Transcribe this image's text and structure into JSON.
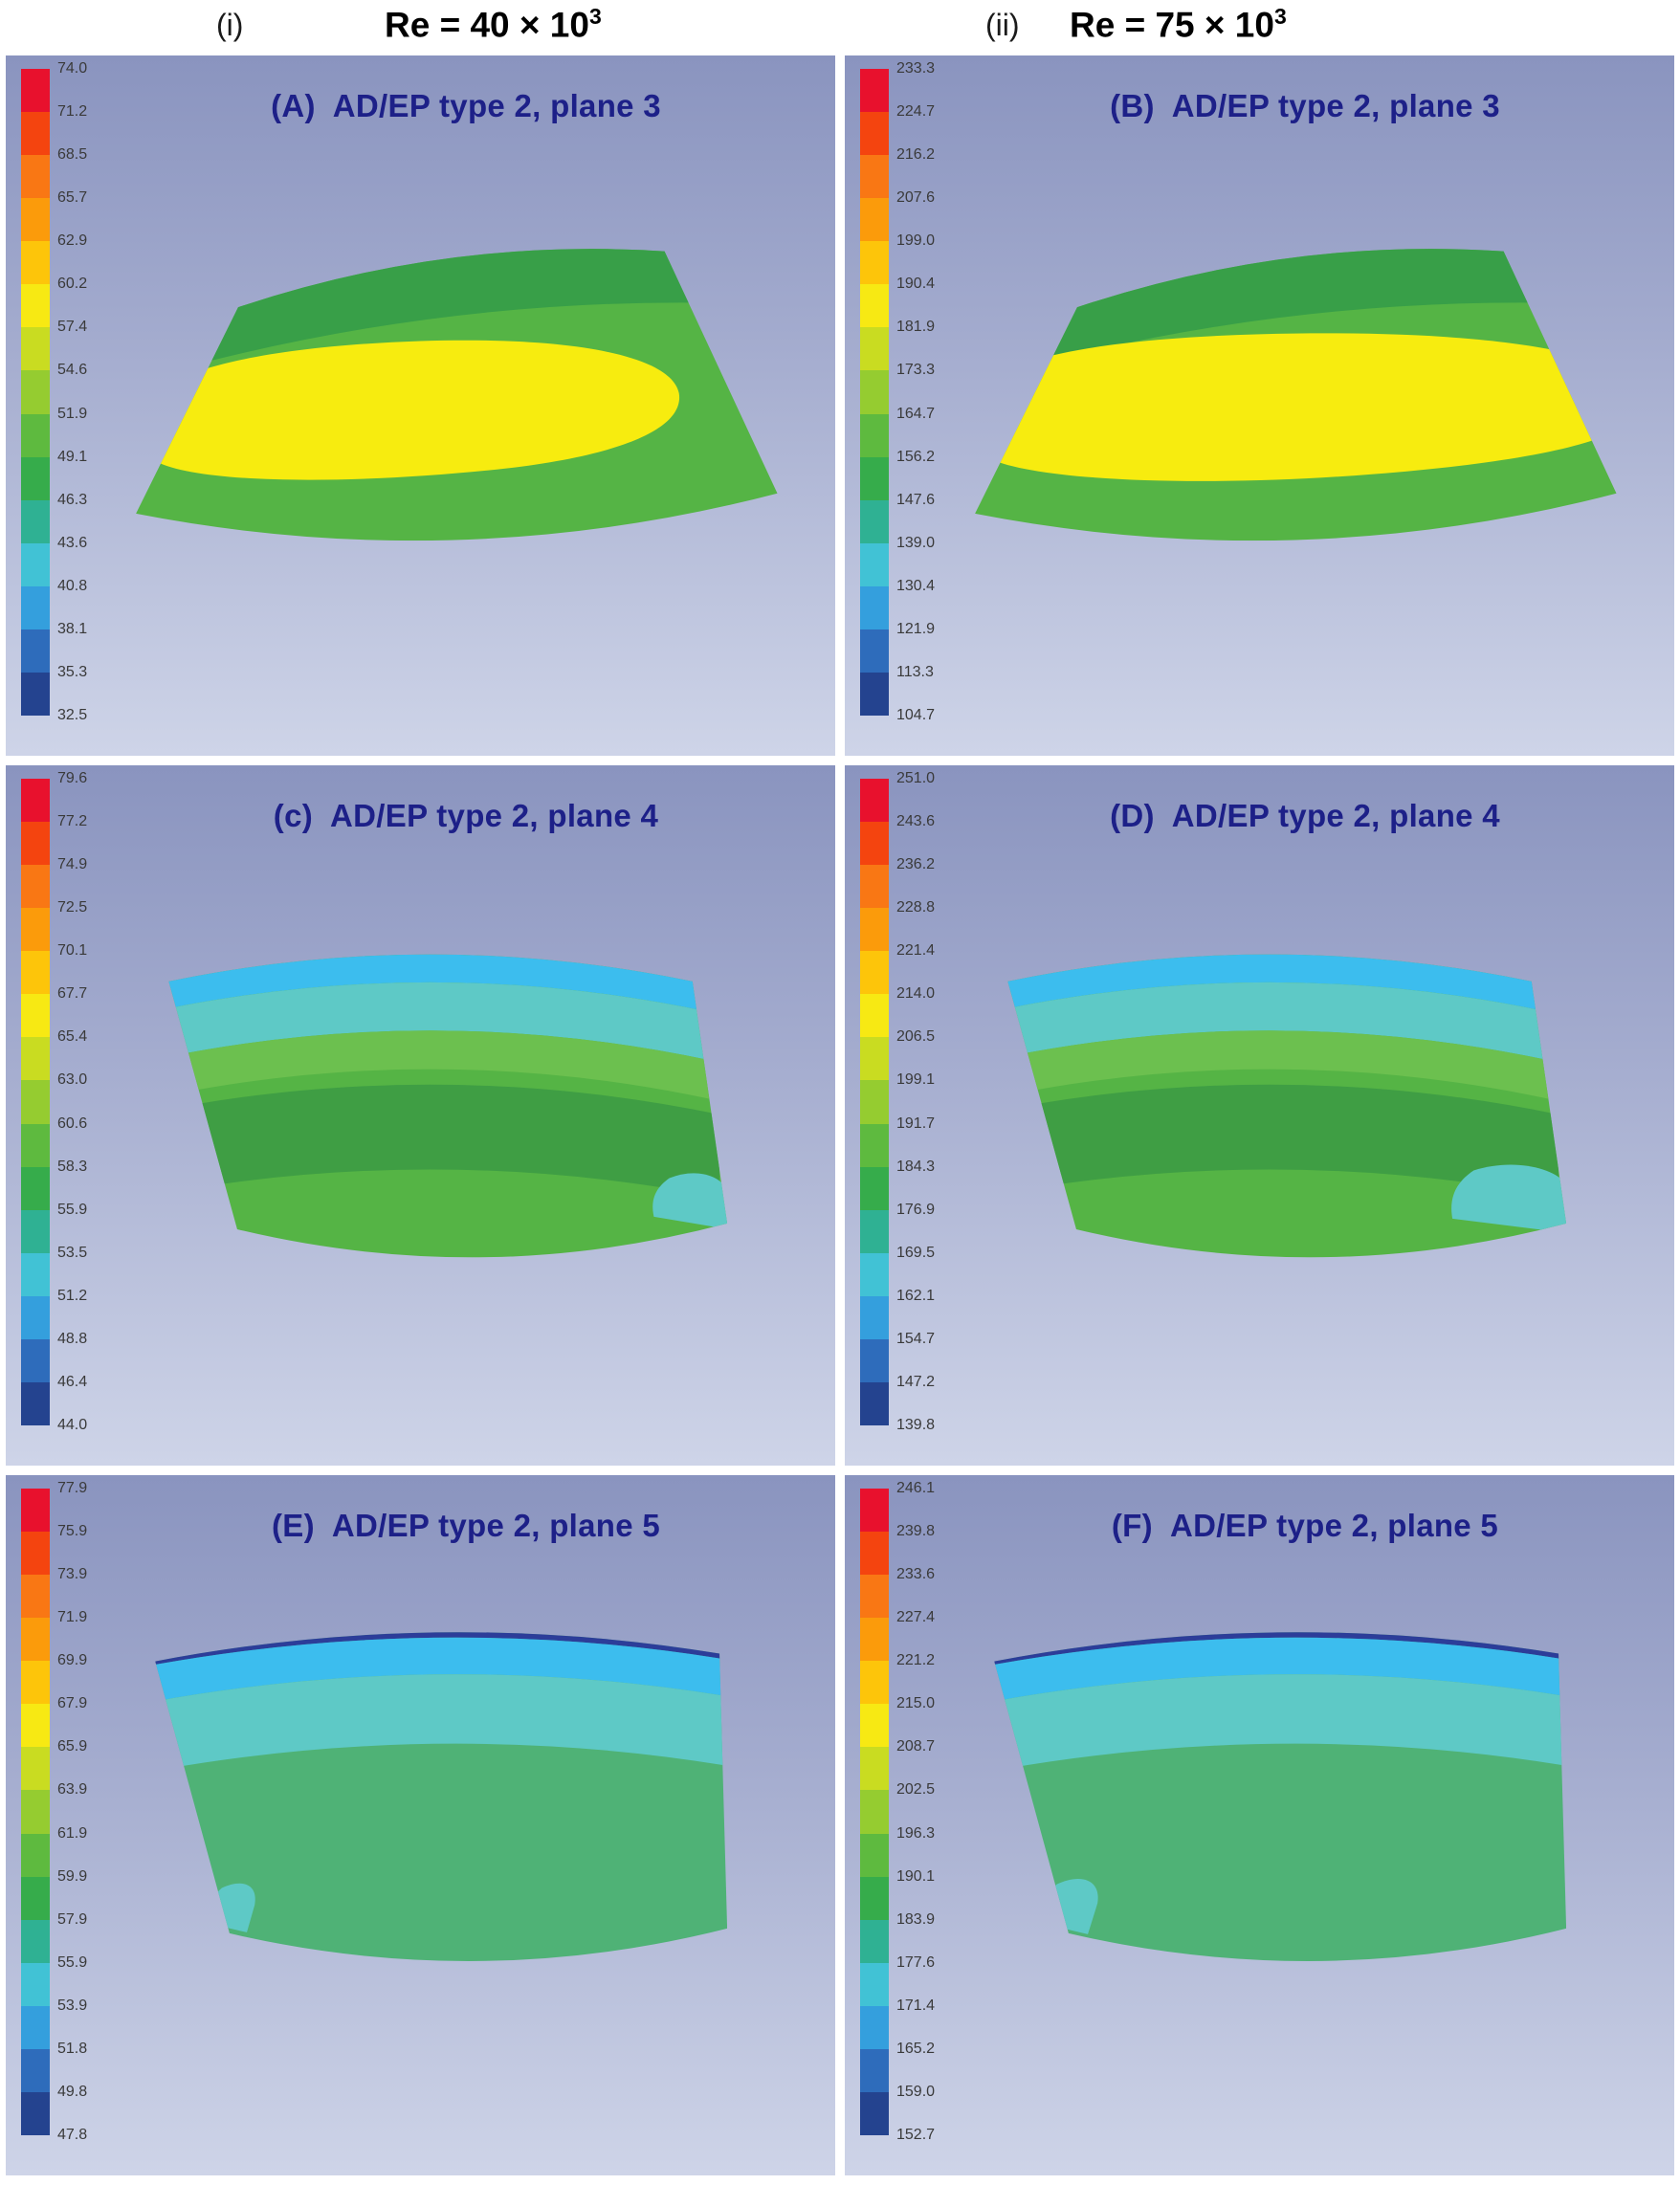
{
  "header": {
    "left": {
      "index": "(i)",
      "re": "Re = 40 × 10",
      "sup": "3"
    },
    "right": {
      "index": "(ii)",
      "re": "Re = 75 × 10",
      "sup": "3"
    }
  },
  "palette": {
    "green": "#55b445",
    "green_dark": "#389f48",
    "green_dark2": "#3f9e44",
    "green_light": "#6cc04f",
    "seagreen": "#4fb276",
    "yellow": "#f7ec0f",
    "cyan": "#3cbdee",
    "teal": "#5ec9c6",
    "navy": "#2c3d99",
    "title": "#1d2088",
    "tick_text": "#3a3a3a",
    "bg_top": "#8a94bf",
    "bg_mid": "#a3abce",
    "bg_bottom": "#ced4e8"
  },
  "band_colors": [
    "#e8112d",
    "#f4440f",
    "#f97714",
    "#fb9b0b",
    "#fdc50a",
    "#f7e913",
    "#c9dc21",
    "#95cc30",
    "#5eba3f",
    "#36ac4b",
    "#2fb193",
    "#41c2d5",
    "#349fdd",
    "#2e6cbb",
    "#24438f"
  ],
  "panels": [
    {
      "label": "(A)",
      "title": "AD/EP type 2, plane 3",
      "ticks": [
        "74.0",
        "71.2",
        "68.5",
        "65.7",
        "62.9",
        "60.2",
        "57.4",
        "54.6",
        "51.9",
        "49.1",
        "46.3",
        "43.6",
        "40.8",
        "38.1",
        "35.3",
        "32.5"
      ]
    },
    {
      "label": "(B)",
      "title": "AD/EP type 2, plane 3",
      "ticks": [
        "233.3",
        "224.7",
        "216.2",
        "207.6",
        "199.0",
        "190.4",
        "181.9",
        "173.3",
        "164.7",
        "156.2",
        "147.6",
        "139.0",
        "130.4",
        "121.9",
        "113.3",
        "104.7"
      ]
    },
    {
      "label": "(c)",
      "title": "AD/EP type 2, plane 4",
      "ticks": [
        "79.6",
        "77.2",
        "74.9",
        "72.5",
        "70.1",
        "67.7",
        "65.4",
        "63.0",
        "60.6",
        "58.3",
        "55.9",
        "53.5",
        "51.2",
        "48.8",
        "46.4",
        "44.0"
      ]
    },
    {
      "label": "(D)",
      "title": "AD/EP type 2, plane 4",
      "ticks": [
        "251.0",
        "243.6",
        "236.2",
        "228.8",
        "221.4",
        "214.0",
        "206.5",
        "199.1",
        "191.7",
        "184.3",
        "176.9",
        "169.5",
        "162.1",
        "154.7",
        "147.2",
        "139.8"
      ]
    },
    {
      "label": "(E)",
      "title": "AD/EP type 2, plane 5",
      "ticks": [
        "77.9",
        "75.9",
        "73.9",
        "71.9",
        "69.9",
        "67.9",
        "65.9",
        "63.9",
        "61.9",
        "59.9",
        "57.9",
        "55.9",
        "53.9",
        "51.8",
        "49.8",
        "47.8"
      ]
    },
    {
      "label": "(F)",
      "title": "AD/EP type 2, plane 5",
      "ticks": [
        "246.1",
        "239.8",
        "233.6",
        "227.4",
        "221.2",
        "215.0",
        "208.7",
        "202.5",
        "196.3",
        "190.1",
        "183.9",
        "177.6",
        "171.4",
        "165.2",
        "159.0",
        "152.7"
      ]
    }
  ],
  "chart_data": [
    {
      "type": "heatmap",
      "panel_label": "(A)",
      "title": "AD/EP type 2, plane 3",
      "column_header": "Re = 40 × 10^3",
      "colorbar_min": 32.5,
      "colorbar_max": 74.0,
      "colorbar_ticks": [
        74.0,
        71.2,
        68.5,
        65.7,
        62.9,
        60.2,
        57.4,
        54.6,
        51.9,
        49.1,
        46.3,
        43.6,
        40.8,
        38.1,
        35.3,
        32.5
      ],
      "legend_position": "left"
    },
    {
      "type": "heatmap",
      "panel_label": "(B)",
      "title": "AD/EP type 2, plane 3",
      "column_header": "Re = 75 × 10^3",
      "colorbar_min": 104.7,
      "colorbar_max": 233.3,
      "colorbar_ticks": [
        233.3,
        224.7,
        216.2,
        207.6,
        199.0,
        190.4,
        181.9,
        173.3,
        164.7,
        156.2,
        147.6,
        139.0,
        130.4,
        121.9,
        113.3,
        104.7
      ],
      "legend_position": "left"
    },
    {
      "type": "heatmap",
      "panel_label": "(c)",
      "title": "AD/EP type 2, plane 4",
      "column_header": "Re = 40 × 10^3",
      "colorbar_min": 44.0,
      "colorbar_max": 79.6,
      "colorbar_ticks": [
        79.6,
        77.2,
        74.9,
        72.5,
        70.1,
        67.7,
        65.4,
        63.0,
        60.6,
        58.3,
        55.9,
        53.5,
        51.2,
        48.8,
        46.4,
        44.0
      ],
      "legend_position": "left"
    },
    {
      "type": "heatmap",
      "panel_label": "(D)",
      "title": "AD/EP type 2, plane 4",
      "column_header": "Re = 75 × 10^3",
      "colorbar_min": 139.8,
      "colorbar_max": 251.0,
      "colorbar_ticks": [
        251.0,
        243.6,
        236.2,
        228.8,
        221.4,
        214.0,
        206.5,
        199.1,
        191.7,
        184.3,
        176.9,
        169.5,
        162.1,
        154.7,
        147.2,
        139.8
      ],
      "legend_position": "left"
    },
    {
      "type": "heatmap",
      "panel_label": "(E)",
      "title": "AD/EP type 2, plane 5",
      "column_header": "Re = 40 × 10^3",
      "colorbar_min": 47.8,
      "colorbar_max": 77.9,
      "colorbar_ticks": [
        77.9,
        75.9,
        73.9,
        71.9,
        69.9,
        67.9,
        65.9,
        63.9,
        61.9,
        59.9,
        57.9,
        55.9,
        53.9,
        51.8,
        49.8,
        47.8
      ],
      "legend_position": "left"
    },
    {
      "type": "heatmap",
      "panel_label": "(F)",
      "title": "AD/EP type 2, plane 5",
      "column_header": "Re = 75 × 10^3",
      "colorbar_min": 152.7,
      "colorbar_max": 246.1,
      "colorbar_ticks": [
        246.1,
        239.8,
        233.6,
        227.4,
        221.2,
        215.0,
        208.7,
        202.5,
        196.3,
        190.1,
        183.9,
        177.6,
        171.4,
        165.2,
        159.0,
        152.7
      ],
      "legend_position": "left"
    }
  ]
}
